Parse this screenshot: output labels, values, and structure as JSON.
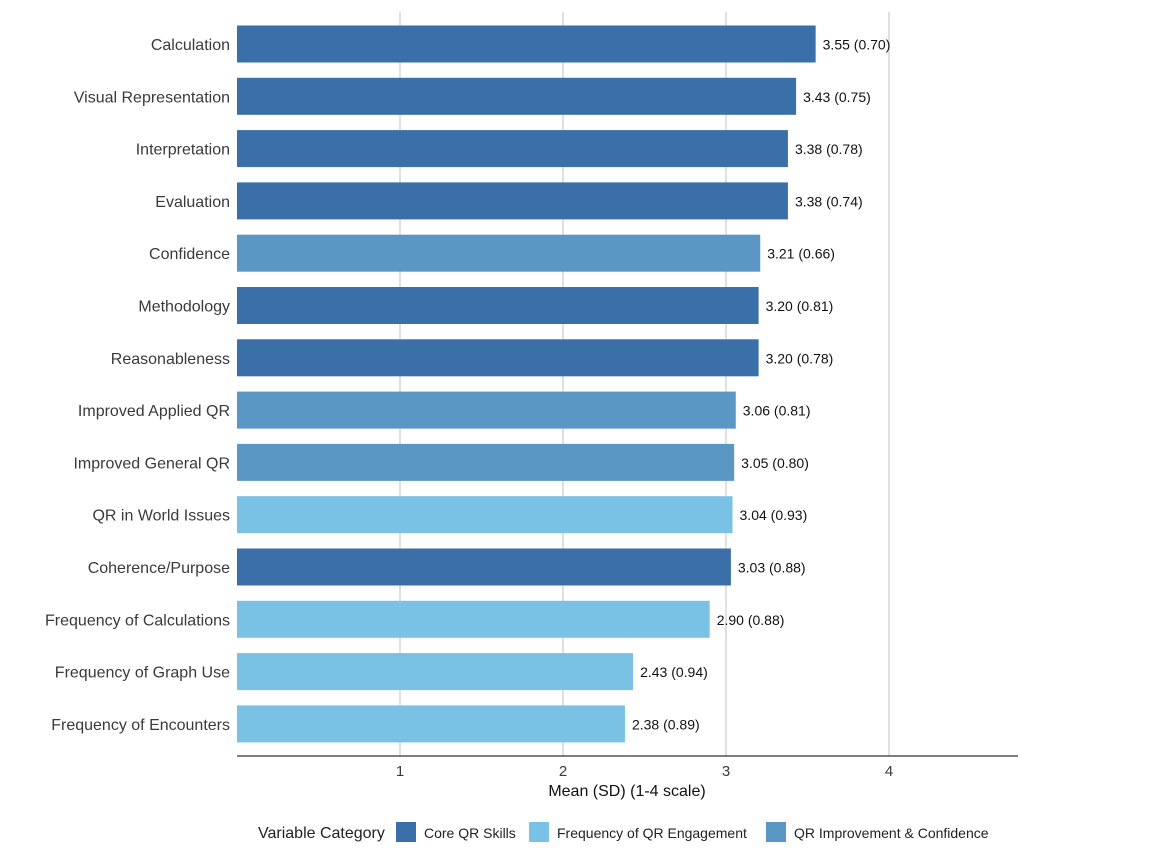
{
  "chart_data": {
    "type": "bar",
    "orientation": "horizontal",
    "title": "",
    "xlabel": "Mean (SD) (1-4 scale)",
    "ylabel": "",
    "xlim": [
      0,
      4.8
    ],
    "xticks": [
      "1",
      "2",
      "3",
      "4"
    ],
    "grid": "vertical major gridlines",
    "legend_position": "bottom",
    "legend_title": "Variable Category",
    "colors": {
      "Core QR Skills": "#3a6fa8",
      "Frequency of QR Engagement": "#79c2e5",
      "QR Improvement & Confidence": "#5b97c5"
    },
    "categories": [
      "Calculation",
      "Visual Representation",
      "Interpretation",
      "Evaluation",
      "Confidence",
      "Methodology",
      "Reasonableness",
      "Improved Applied QR",
      "Improved General QR",
      "QR in World Issues",
      "Coherence/Purpose",
      "Frequency of Calculations",
      "Frequency of Graph Use",
      "Frequency of Encounters"
    ],
    "values": [
      3.55,
      3.43,
      3.38,
      3.38,
      3.21,
      3.2,
      3.2,
      3.06,
      3.05,
      3.04,
      3.03,
      2.9,
      2.43,
      2.38
    ],
    "sd": [
      0.7,
      0.75,
      0.78,
      0.74,
      0.66,
      0.81,
      0.78,
      0.81,
      0.8,
      0.93,
      0.88,
      0.88,
      0.94,
      0.89
    ],
    "data_labels": [
      "3.55 (0.70)",
      "3.43 (0.75)",
      "3.38 (0.78)",
      "3.38 (0.74)",
      "3.21 (0.66)",
      "3.20 (0.81)",
      "3.20 (0.78)",
      "3.06 (0.81)",
      "3.05 (0.80)",
      "3.04 (0.93)",
      "3.03 (0.88)",
      "2.90 (0.88)",
      "2.43 (0.94)",
      "2.38 (0.89)"
    ],
    "groups": [
      "Core QR Skills",
      "Core QR Skills",
      "Core QR Skills",
      "Core QR Skills",
      "QR Improvement & Confidence",
      "Core QR Skills",
      "Core QR Skills",
      "QR Improvement & Confidence",
      "QR Improvement & Confidence",
      "Frequency of QR Engagement",
      "Core QR Skills",
      "Frequency of QR Engagement",
      "Frequency of QR Engagement",
      "Frequency of QR Engagement"
    ],
    "legend": [
      "Core QR Skills",
      "Frequency of QR Engagement",
      "QR Improvement & Confidence"
    ]
  }
}
